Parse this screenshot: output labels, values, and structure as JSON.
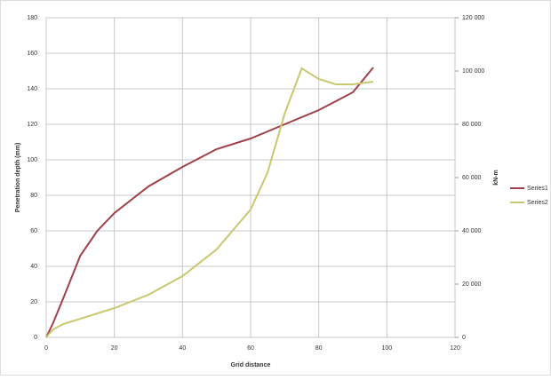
{
  "chart_data": {
    "type": "line",
    "x_label": "Grid distance",
    "y_label": "Penetration depth (mm)",
    "y2_label": "kN-m",
    "xlim": [
      0,
      120
    ],
    "xticks": [
      0,
      20,
      40,
      60,
      80,
      100,
      120
    ],
    "ylim": [
      0,
      180
    ],
    "yticks": [
      0,
      20,
      40,
      60,
      80,
      100,
      120,
      140,
      160,
      180
    ],
    "y2lim": [
      0,
      120000
    ],
    "y2ticks": [
      0,
      {
        "value": 20000,
        "label": "20 000"
      },
      {
        "value": 40000,
        "label": "40 000"
      },
      {
        "value": 60000,
        "label": "60 000"
      },
      {
        "value": 80000,
        "label": "80 000"
      },
      {
        "value": 100000,
        "label": "100 000"
      },
      {
        "value": 120000,
        "label": "120 000"
      }
    ],
    "grid": true,
    "legend": "right",
    "series": [
      {
        "name": "Series1",
        "color": "#a0404a",
        "x": [
          0,
          2,
          5,
          10,
          15,
          20,
          30,
          40,
          50,
          60,
          70,
          80,
          90,
          96
        ],
        "values": [
          0,
          8,
          22,
          46,
          60,
          70,
          85,
          96,
          106,
          112,
          120,
          128,
          138,
          152
        ]
      },
      {
        "name": "Series2",
        "color": "#c8c870",
        "axis": "y2",
        "x": [
          0,
          2,
          5,
          20,
          30,
          40,
          50,
          60,
          65,
          70,
          75,
          80,
          85,
          90,
          96
        ],
        "values": [
          0,
          3000,
          5000,
          11000,
          16000,
          23000,
          33000,
          48000,
          62000,
          84000,
          101000,
          97000,
          95000,
          95000,
          96000
        ]
      }
    ]
  }
}
